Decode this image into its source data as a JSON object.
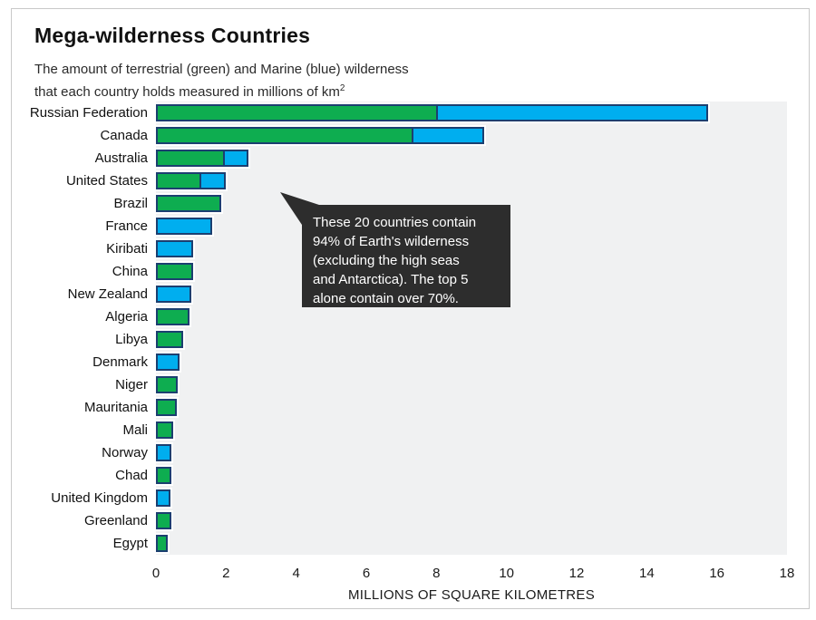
{
  "header": {
    "title": "Mega-wilderness Countries",
    "subtitle_line1": "The amount of terrestrial (green) and Marine (blue) wilderness",
    "subtitle_line2": "that each country holds measured in millions of km",
    "subtitle_superscript": "2"
  },
  "annotation": {
    "lines": [
      "These 20 countries contain",
      "94% of Earth's wilderness",
      "(excluding the high seas",
      "and Antarctica). The top 5",
      "alone contain over 70%."
    ],
    "bg_color": "#2d2d2d",
    "text_color": "#ffffff"
  },
  "chart_data": {
    "type": "bar",
    "orientation": "horizontal",
    "stacked": true,
    "title": "Mega-wilderness Countries",
    "xlabel": "MILLIONS OF SQUARE KILOMETRES",
    "ylabel": "",
    "xlim": [
      0,
      18
    ],
    "x_ticks": [
      0,
      2,
      4,
      6,
      8,
      10,
      12,
      14,
      16,
      18
    ],
    "grid": false,
    "legend_position": "none",
    "plot_bg_color": "#f0f1f2",
    "bar_border_color": "#1c3f70",
    "bar_halo_color": "#ffffff",
    "categories": [
      "Russian Federation",
      "Canada",
      "Australia",
      "United States",
      "Brazil",
      "France",
      "Kiribati",
      "China",
      "New Zealand",
      "Algeria",
      "Libya",
      "Denmark",
      "Niger",
      "Mauritania",
      "Mali",
      "Norway",
      "Chad",
      "United Kingdom",
      "Greenland",
      "Egypt"
    ],
    "series": [
      {
        "name": "Terrestrial wilderness",
        "color": "#0ead50",
        "values": [
          8.0,
          7.3,
          1.95,
          1.27,
          1.85,
          0,
          0,
          1.05,
          0,
          0.95,
          0.78,
          0,
          0.62,
          0.6,
          0.5,
          0,
          0.44,
          0,
          0.44,
          0.34
        ]
      },
      {
        "name": "Marine wilderness",
        "color": "#00aeef",
        "values": [
          7.75,
          2.05,
          0.7,
          0.73,
          0,
          1.6,
          1.05,
          0,
          1.0,
          0,
          0,
          0.68,
          0,
          0,
          0,
          0.44,
          0,
          0.42,
          0,
          0
        ]
      }
    ]
  }
}
